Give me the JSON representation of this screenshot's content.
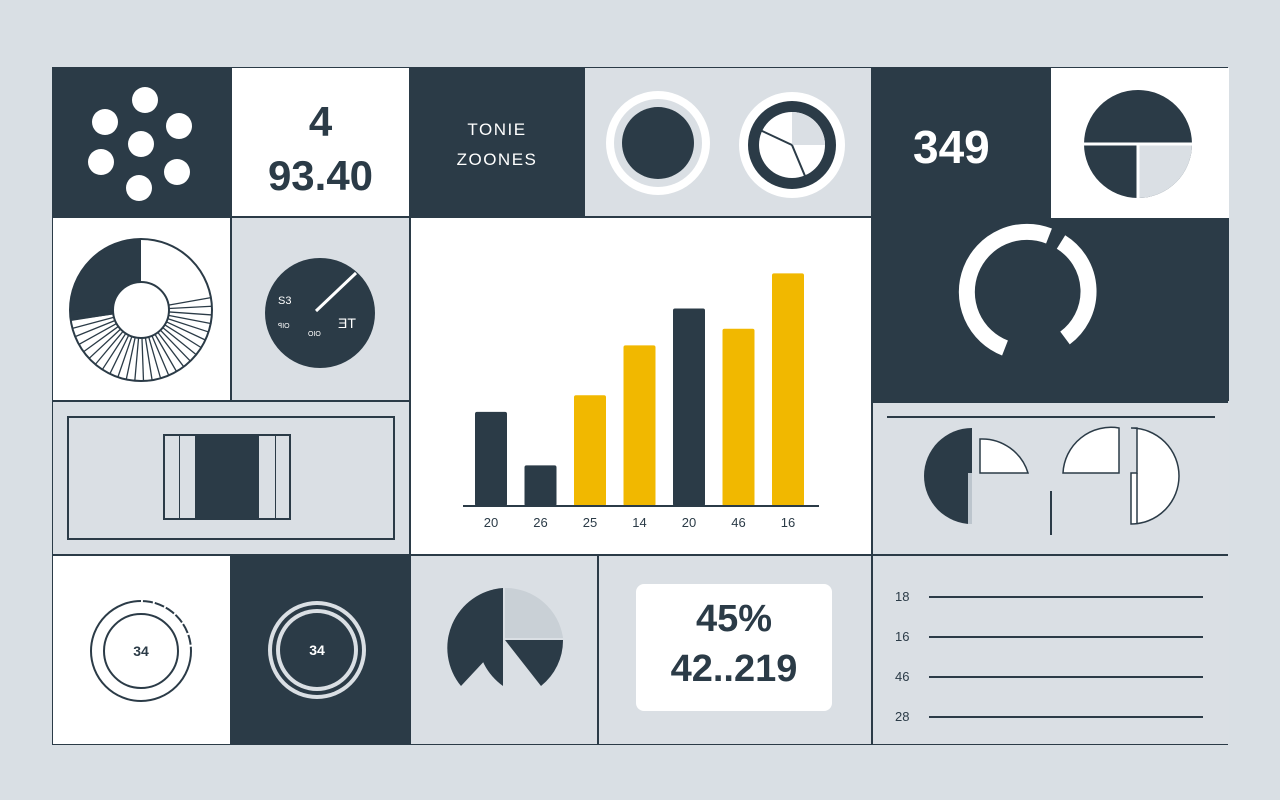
{
  "colors": {
    "dark": "#2b3b47",
    "light": "#dadfe4",
    "white": "#ffffff",
    "accent": "#f1b800",
    "page_bg": "#d9dfe4"
  },
  "tiles": {
    "stat_a": {
      "line1": "4",
      "line2": "93.40"
    },
    "label_tile": {
      "line1": "TONIE",
      "line2": "ZOONES"
    },
    "stat_b": {
      "value": "349"
    },
    "gauge": {
      "label_left": "S3",
      "label_right": "ƎT",
      "small_1": "ꟼIO",
      "small_2": "OIO"
    },
    "ring_white": {
      "value": "34"
    },
    "ring_dark": {
      "value": "34"
    },
    "percent_card": {
      "line1": "45%",
      "line2": "42..219"
    },
    "list": {
      "items": [
        "18",
        "16",
        "46",
        "28"
      ]
    }
  },
  "chart_data": {
    "type": "bar",
    "categories": [
      "20",
      "26",
      "25",
      "14",
      "20",
      "46",
      "16"
    ],
    "values": [
      51,
      22,
      60,
      87,
      107,
      96,
      126
    ],
    "colors": [
      "#2b3b47",
      "#2b3b47",
      "#f1b800",
      "#f1b800",
      "#2b3b47",
      "#f1b800",
      "#f1b800"
    ],
    "title": "",
    "xlabel": "",
    "ylabel": "",
    "ylim": [
      0,
      130
    ],
    "grid": false,
    "legend": "none"
  }
}
